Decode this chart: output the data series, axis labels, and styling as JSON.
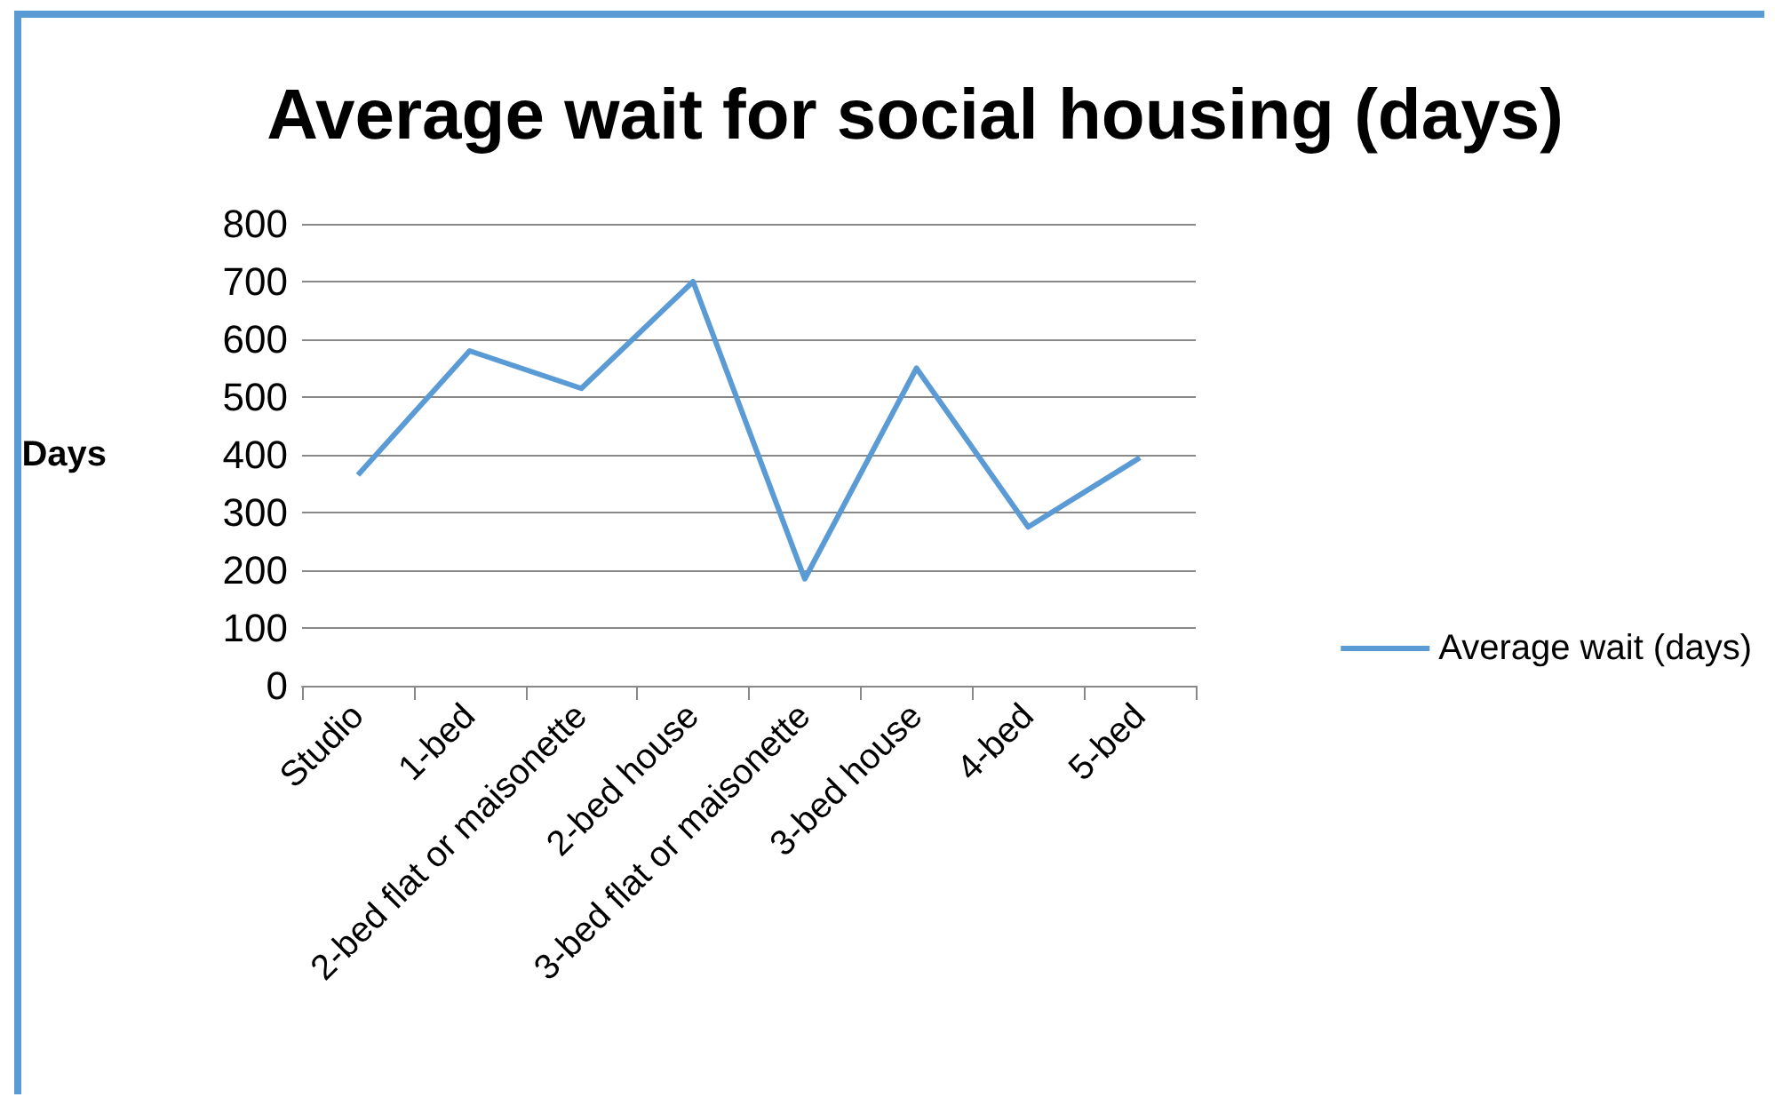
{
  "chart_data": {
    "type": "line",
    "title": "Average wait for social housing (days)",
    "ylabel": "Days",
    "categories": [
      "Studio",
      "1-bed",
      "2-bed flat or maisonette",
      "2-bed house",
      "3-bed flat or maisonette",
      "3-bed house",
      "4-bed",
      "5-bed"
    ],
    "series": [
      {
        "name": "Average wait (days)",
        "color": "#5b9bd5",
        "values": [
          365,
          580,
          515,
          700,
          185,
          550,
          275,
          395
        ]
      }
    ],
    "ylim": [
      0,
      800
    ],
    "yticks": [
      0,
      100,
      200,
      300,
      400,
      500,
      600,
      700,
      800
    ],
    "grid": "y",
    "legend": "right",
    "marker": "none"
  }
}
